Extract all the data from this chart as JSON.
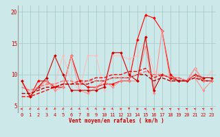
{
  "bg_color": "#cce8e8",
  "grid_color": "#aacccc",
  "xlabel": "Vent moyen/en rafales ( km/h )",
  "xlim": [
    -0.5,
    23.5
  ],
  "ylim": [
    4.0,
    21.0
  ],
  "yticks": [
    5,
    10,
    15,
    20
  ],
  "xticks": [
    0,
    1,
    2,
    3,
    4,
    5,
    6,
    7,
    8,
    9,
    10,
    11,
    12,
    13,
    14,
    15,
    16,
    17,
    18,
    19,
    20,
    21,
    22,
    23
  ],
  "series": [
    {
      "x": [
        0,
        1,
        2,
        3,
        4,
        5,
        6,
        7,
        8,
        9,
        10,
        11,
        12,
        13,
        14,
        15,
        16,
        17,
        18,
        19,
        20,
        21,
        22,
        23
      ],
      "y": [
        9,
        6.5,
        9,
        9,
        8,
        8,
        13,
        9,
        8,
        8,
        8.5,
        8.5,
        9,
        9,
        15.5,
        19.5,
        19,
        17,
        10,
        9,
        9,
        11,
        9,
        9
      ],
      "color": "#ff0000",
      "lw": 0.8,
      "marker": "D",
      "ms": 2.0,
      "linestyle": "-"
    },
    {
      "x": [
        0,
        1,
        2,
        3,
        4,
        5,
        6,
        7,
        8,
        9,
        10,
        11,
        12,
        13,
        14,
        15,
        16,
        17,
        18,
        19,
        20,
        21,
        22,
        23
      ],
      "y": [
        9,
        7,
        8,
        9,
        7.5,
        8,
        13,
        7.5,
        7,
        8,
        9,
        8,
        9,
        9,
        9,
        14.5,
        7,
        17,
        9,
        9,
        9,
        9.5,
        7.5,
        9
      ],
      "color": "#ff8888",
      "lw": 0.7,
      "marker": "D",
      "ms": 1.8,
      "linestyle": "-"
    },
    {
      "x": [
        0,
        1,
        2,
        3,
        4,
        5,
        6,
        7,
        8,
        9,
        10,
        11,
        12,
        13,
        14,
        15,
        16,
        17,
        18,
        19,
        20,
        21,
        22,
        23
      ],
      "y": [
        9,
        7,
        7.5,
        8.5,
        8.5,
        13,
        9,
        7.5,
        13,
        13,
        7.5,
        13,
        13,
        12.5,
        13,
        15.5,
        10.5,
        10,
        9.5,
        9,
        9,
        11,
        9,
        10.5
      ],
      "color": "#ffbbbb",
      "lw": 0.7,
      "marker": "D",
      "ms": 1.8,
      "linestyle": "-"
    },
    {
      "x": [
        0,
        1,
        2,
        3,
        4,
        5,
        6,
        7,
        8,
        9,
        10,
        11,
        12,
        13,
        14,
        15,
        16,
        17,
        18,
        19,
        20,
        21,
        22,
        23
      ],
      "y": [
        9,
        6.5,
        8,
        9.5,
        13,
        10,
        7.5,
        7.5,
        7.5,
        7.5,
        8,
        13.5,
        13.5,
        10,
        9,
        16,
        7.5,
        10,
        9.5,
        9,
        9,
        10,
        9.5,
        9.5
      ],
      "color": "#cc0000",
      "lw": 0.8,
      "marker": "D",
      "ms": 2.0,
      "linestyle": "-"
    },
    {
      "x": [
        0,
        1,
        2,
        3,
        4,
        5,
        6,
        7,
        8,
        9,
        10,
        11,
        12,
        13,
        14,
        15,
        16,
        17,
        18,
        19,
        20,
        21,
        22,
        23
      ],
      "y": [
        6.5,
        6.5,
        7.0,
        7.5,
        8.0,
        8.5,
        8.5,
        9.0,
        9.0,
        9.5,
        9.5,
        10.0,
        10.0,
        10.5,
        10.5,
        11.0,
        9.5,
        10.0,
        9.5,
        9.5,
        9.0,
        10.0,
        9.0,
        9.0
      ],
      "color": "#ff0000",
      "lw": 1.0,
      "marker": null,
      "ms": 0,
      "linestyle": "--"
    },
    {
      "x": [
        0,
        1,
        2,
        3,
        4,
        5,
        6,
        7,
        8,
        9,
        10,
        11,
        12,
        13,
        14,
        15,
        16,
        17,
        18,
        19,
        20,
        21,
        22,
        23
      ],
      "y": [
        7.0,
        7.0,
        7.5,
        8.0,
        8.0,
        8.5,
        8.5,
        8.5,
        8.5,
        9.0,
        9.0,
        9.5,
        9.5,
        9.5,
        10.0,
        10.0,
        9.0,
        9.5,
        9.0,
        9.0,
        9.0,
        9.5,
        9.0,
        9.0
      ],
      "color": "#aa0000",
      "lw": 1.0,
      "marker": null,
      "ms": 0,
      "linestyle": "--"
    },
    {
      "x": [
        0,
        1,
        2,
        3,
        4,
        5,
        6,
        7,
        8,
        9,
        10,
        11,
        12,
        13,
        14,
        15,
        16,
        17,
        18,
        19,
        20,
        21,
        22,
        23
      ],
      "y": [
        8.0,
        7.5,
        8.0,
        8.5,
        8.5,
        9.0,
        9.0,
        8.5,
        9.0,
        9.0,
        9.0,
        9.5,
        9.5,
        9.5,
        10.0,
        10.5,
        10.0,
        10.0,
        9.5,
        9.5,
        9.0,
        10.0,
        9.0,
        9.0
      ],
      "color": "#ff6666",
      "lw": 1.0,
      "marker": null,
      "ms": 0,
      "linestyle": "--"
    }
  ],
  "wind_arrows": [
    270,
    225,
    250,
    225,
    220,
    225,
    230,
    135,
    135,
    135,
    90,
    135,
    90,
    180,
    90,
    270,
    315,
    270,
    290,
    315,
    290,
    290,
    300,
    300
  ],
  "arrow_color": "#ff0000",
  "tick_color": "#cc0000",
  "label_color": "#cc0000",
  "xlabel_fontsize": 5.5,
  "tick_fontsize": 5.0
}
